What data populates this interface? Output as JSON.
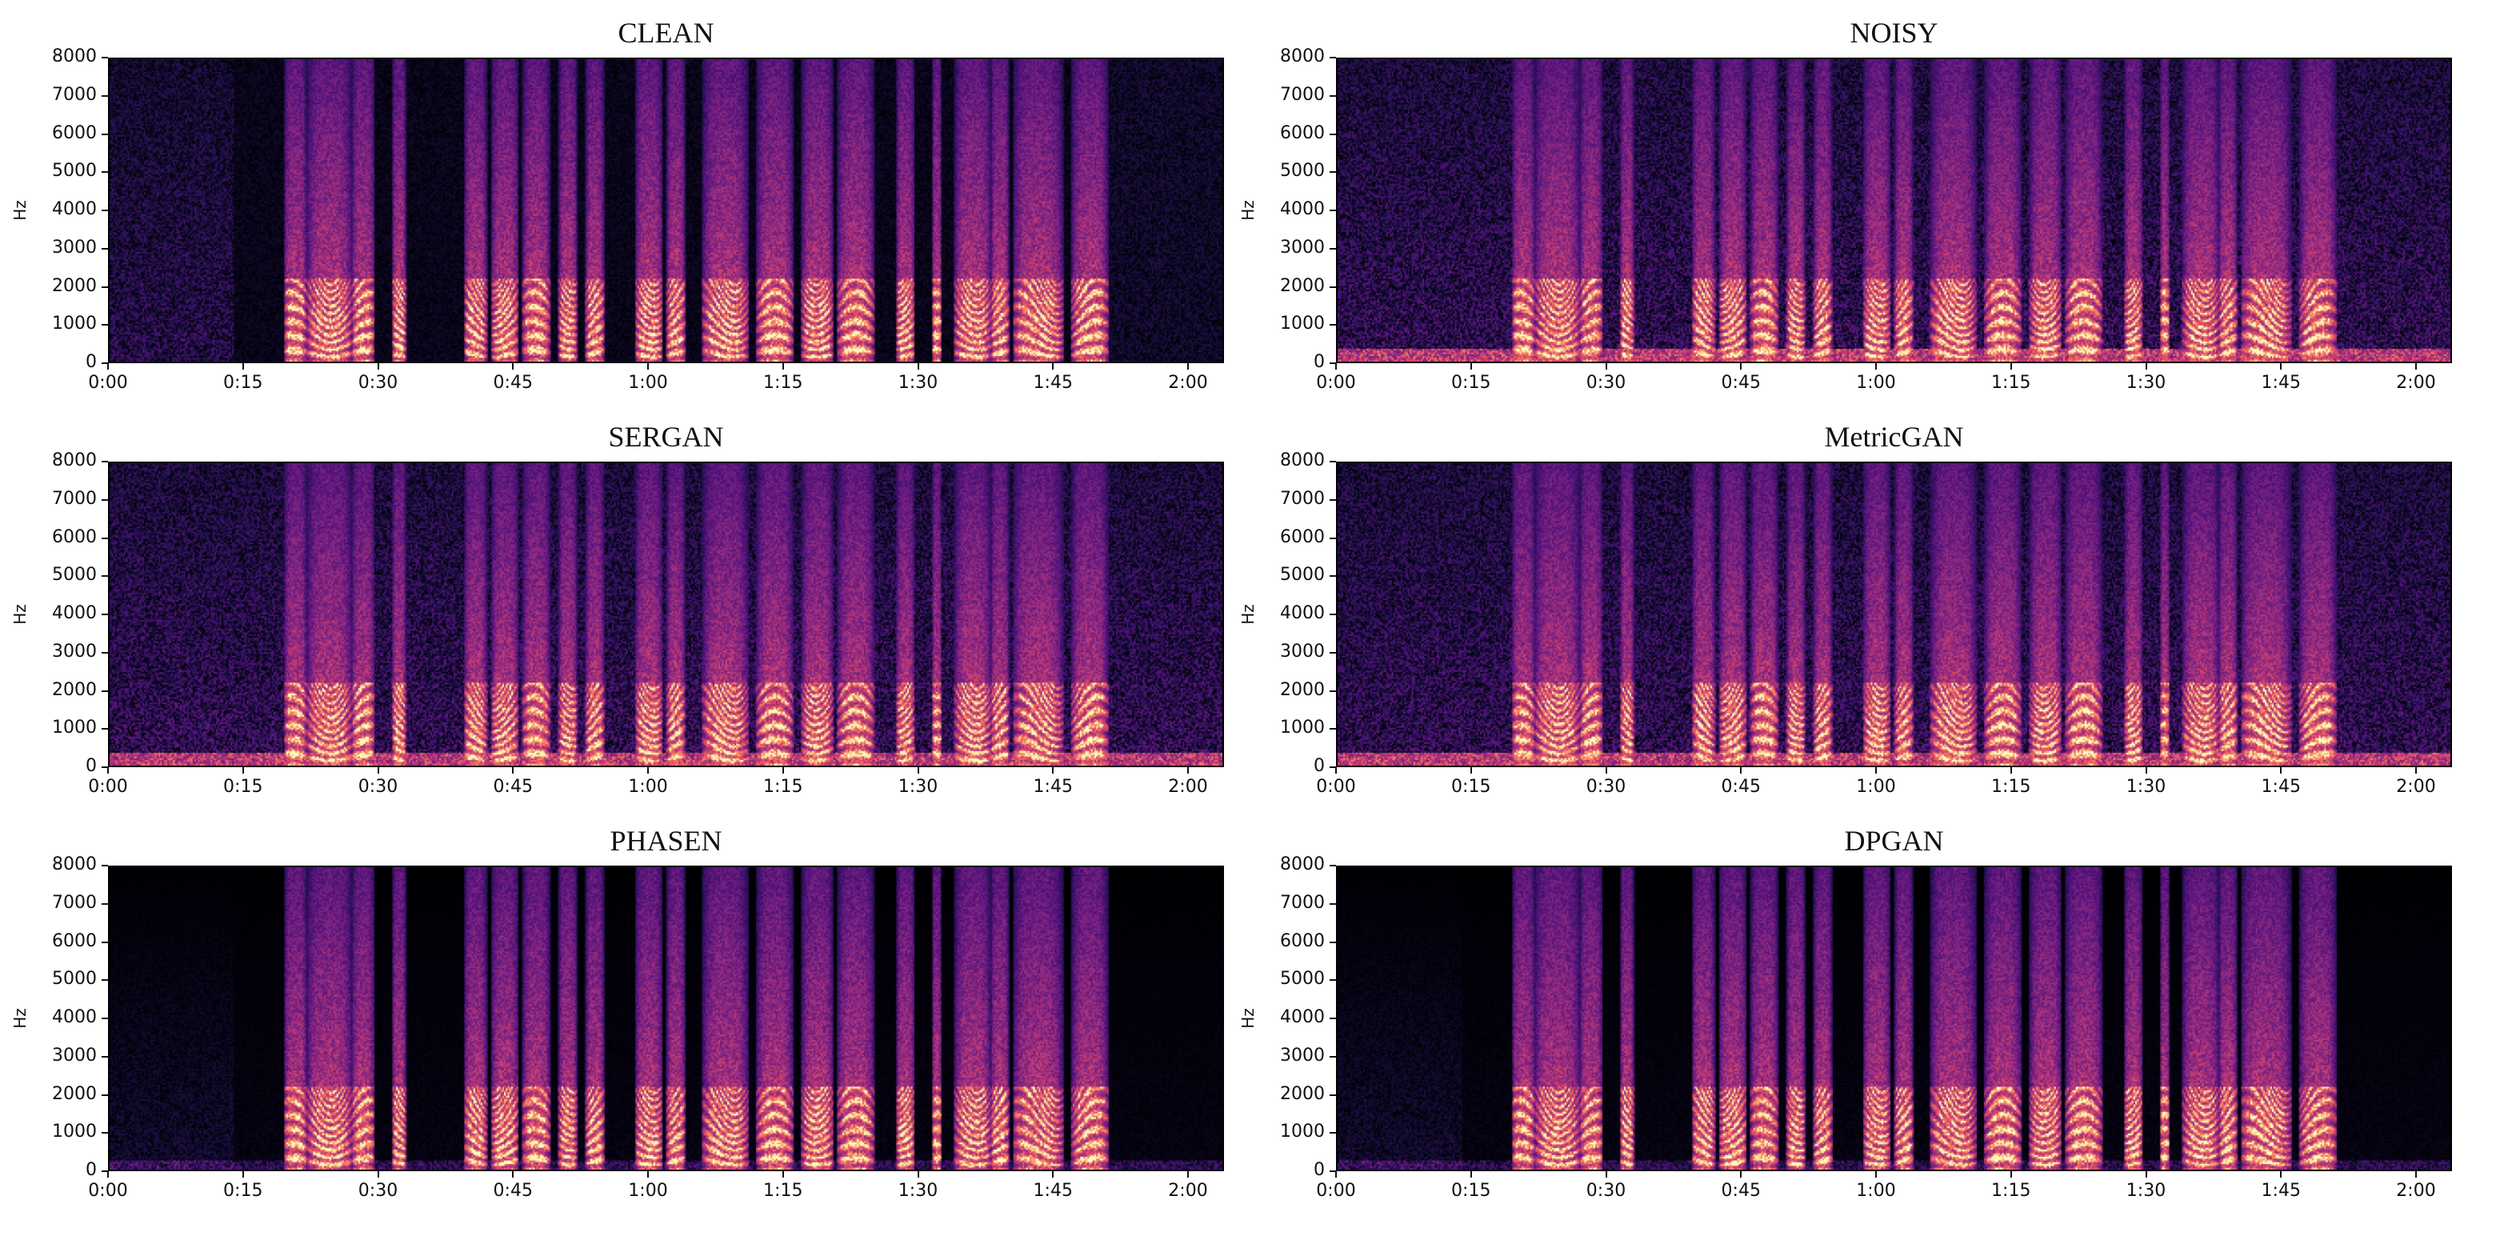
{
  "chart_data": [
    {
      "type": "heatmap",
      "title": "CLEAN",
      "ylabel": "Hz",
      "ylim": [
        0,
        8000
      ],
      "yticks": [
        "0",
        "1000",
        "2000",
        "3000",
        "4000",
        "5000",
        "6000",
        "7000",
        "8000"
      ],
      "xticks": [
        "0:00",
        "0:15",
        "0:30",
        "0:45",
        "1:00",
        "1:15",
        "1:30",
        "1:45",
        "2:00"
      ],
      "xlim_seconds": [
        0,
        124
      ],
      "colormap": "magma",
      "variant": "clean"
    },
    {
      "type": "heatmap",
      "title": "NOISY",
      "ylabel": "Hz",
      "ylim": [
        0,
        8000
      ],
      "yticks": [
        "0",
        "1000",
        "2000",
        "3000",
        "4000",
        "5000",
        "6000",
        "7000",
        "8000"
      ],
      "xticks": [
        "0:00",
        "0:15",
        "0:30",
        "0:45",
        "1:00",
        "1:15",
        "1:30",
        "1:45",
        "2:00"
      ],
      "xlim_seconds": [
        0,
        124
      ],
      "colormap": "magma",
      "variant": "noisy"
    },
    {
      "type": "heatmap",
      "title": "SERGAN",
      "ylabel": "Hz",
      "ylim": [
        0,
        8000
      ],
      "yticks": [
        "0",
        "1000",
        "2000",
        "3000",
        "4000",
        "5000",
        "6000",
        "7000",
        "8000"
      ],
      "xticks": [
        "0:00",
        "0:15",
        "0:30",
        "0:45",
        "1:00",
        "1:15",
        "1:30",
        "1:45",
        "2:00"
      ],
      "xlim_seconds": [
        0,
        124
      ],
      "colormap": "magma",
      "variant": "noisy"
    },
    {
      "type": "heatmap",
      "title": "MetricGAN",
      "ylabel": "Hz",
      "ylim": [
        0,
        8000
      ],
      "yticks": [
        "0",
        "1000",
        "2000",
        "3000",
        "4000",
        "5000",
        "6000",
        "7000",
        "8000"
      ],
      "xticks": [
        "0:00",
        "0:15",
        "0:30",
        "0:45",
        "1:00",
        "1:15",
        "1:30",
        "1:45",
        "2:00"
      ],
      "xlim_seconds": [
        0,
        124
      ],
      "colormap": "magma",
      "variant": "noisy"
    },
    {
      "type": "heatmap",
      "title": "PHASEN",
      "ylabel": "Hz",
      "ylim": [
        0,
        8000
      ],
      "yticks": [
        "0",
        "1000",
        "2000",
        "3000",
        "4000",
        "5000",
        "6000",
        "7000",
        "8000"
      ],
      "xticks": [
        "0:00",
        "0:15",
        "0:30",
        "0:45",
        "1:00",
        "1:15",
        "1:30",
        "1:45",
        "2:00"
      ],
      "xlim_seconds": [
        0,
        124
      ],
      "colormap": "magma",
      "variant": "enhanced"
    },
    {
      "type": "heatmap",
      "title": "DPGAN",
      "ylabel": "Hz",
      "ylim": [
        0,
        8000
      ],
      "yticks": [
        "0",
        "1000",
        "2000",
        "3000",
        "4000",
        "5000",
        "6000",
        "7000",
        "8000"
      ],
      "xticks": [
        "0:00",
        "0:15",
        "0:30",
        "0:45",
        "1:00",
        "1:15",
        "1:30",
        "1:45",
        "2:00"
      ],
      "xlim_seconds": [
        0,
        124
      ],
      "colormap": "magma",
      "variant": "enhanced"
    }
  ],
  "speech_segments_seconds": [
    [
      19.5,
      22
    ],
    [
      22,
      27
    ],
    [
      27,
      29.5
    ],
    [
      31.5,
      33
    ],
    [
      39.5,
      42
    ],
    [
      42.5,
      45.5
    ],
    [
      46,
      49
    ],
    [
      50,
      52
    ],
    [
      53,
      55
    ],
    [
      58.5,
      61.5
    ],
    [
      62,
      64
    ],
    [
      66,
      71
    ],
    [
      72,
      76
    ],
    [
      77,
      80.5
    ],
    [
      81,
      85
    ],
    [
      87.5,
      89.5
    ],
    [
      91.5,
      92.5
    ],
    [
      94,
      98
    ],
    [
      98,
      100
    ],
    [
      100.5,
      106
    ],
    [
      107,
      111
    ]
  ],
  "colors": {
    "background": "#000004",
    "low": "#3b0f70",
    "mid": "#b73779",
    "high": "#fc8961",
    "peak": "#fcfdbf"
  }
}
